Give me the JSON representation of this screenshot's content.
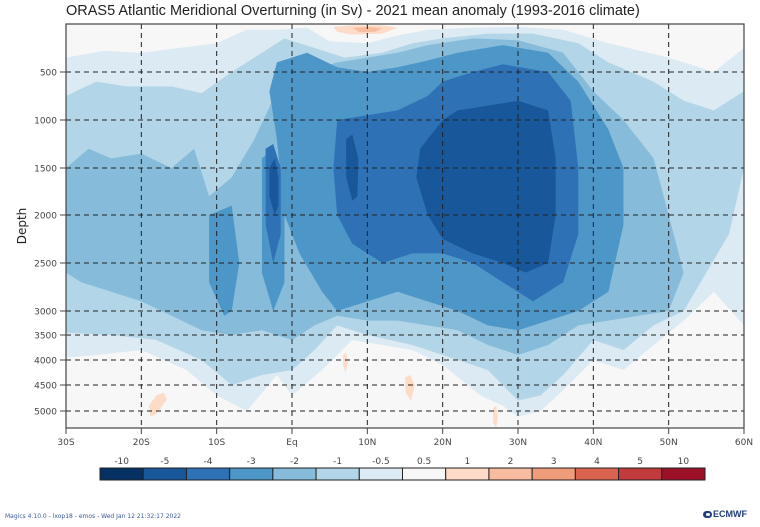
{
  "chart_data": {
    "type": "heatmap",
    "subtype": "filled-contour",
    "title": "ORAS5 Atlantic Meridional Overturning (in Sv) - 2021 mean anomaly (1993-2016 climate)",
    "xlabel": "",
    "ylabel": "Depth",
    "x_ticks": [
      {
        "value": -30,
        "label": "30S"
      },
      {
        "value": -20,
        "label": "20S"
      },
      {
        "value": -10,
        "label": "10S"
      },
      {
        "value": 0,
        "label": "Eq"
      },
      {
        "value": 10,
        "label": "10N"
      },
      {
        "value": 20,
        "label": "20N"
      },
      {
        "value": 30,
        "label": "30N"
      },
      {
        "value": 40,
        "label": "40N"
      },
      {
        "value": 50,
        "label": "50N"
      },
      {
        "value": 60,
        "label": "60N"
      }
    ],
    "y_ticks": [
      500,
      1000,
      1500,
      2000,
      2500,
      3000,
      3500,
      4000,
      4500,
      5000
    ],
    "xlim": [
      -30,
      60
    ],
    "ylim": [
      5300,
      0
    ],
    "grid": true,
    "grid_style": "dashed",
    "legend": {
      "position": "bottom",
      "type": "colorbar",
      "boundaries": [
        "-10",
        "-5",
        "-4",
        "-3",
        "-2",
        "-1",
        "-0.5",
        "0.5",
        "1",
        "2",
        "3",
        "4",
        "5",
        "10"
      ],
      "colors": [
        "#053061",
        "#18589a",
        "#2e72b5",
        "#4d96c8",
        "#86bcda",
        "#b3d5e8",
        "#dbeaf3",
        "#f7f7f7",
        "#fddbc7",
        "#f8bca0",
        "#ef9c7b",
        "#d9634f",
        "#c13a3c",
        "#9c1127",
        "#67001f"
      ]
    },
    "features": [
      {
        "desc": "strong negative core (-5 to -10 band)",
        "lat_range": [
          20,
          36
        ],
        "depth_range": [
          900,
          2700
        ],
        "level": "-5"
      },
      {
        "desc": "negative -4 envelope",
        "lat_range": [
          5,
          40
        ],
        "depth_range": [
          600,
          3100
        ],
        "level": "-4"
      },
      {
        "desc": "narrow negative core near 2S",
        "lat_range": [
          -3,
          -1
        ],
        "depth_range": [
          1200,
          2500
        ],
        "level": "-5"
      },
      {
        "desc": "negative core near 8N",
        "lat_range": [
          7,
          9
        ],
        "depth_range": [
          1200,
          1800
        ],
        "level": "-5"
      },
      {
        "desc": "weak positive anomaly near surface",
        "lat_range": [
          7,
          13
        ],
        "depth_range": [
          0,
          100
        ],
        "level": "1"
      },
      {
        "desc": "small positive patches at depth",
        "points": [
          [
            -18,
            4800
          ],
          [
            7,
            4000
          ],
          [
            15,
            4600
          ],
          [
            27,
            5100
          ]
        ],
        "level": "0.5"
      }
    ]
  },
  "footer": {
    "left": "Magics 4.10.0 - lxop18 - emos - Wed Jan 12 21:32:17 2022",
    "right": "ECMWF"
  }
}
